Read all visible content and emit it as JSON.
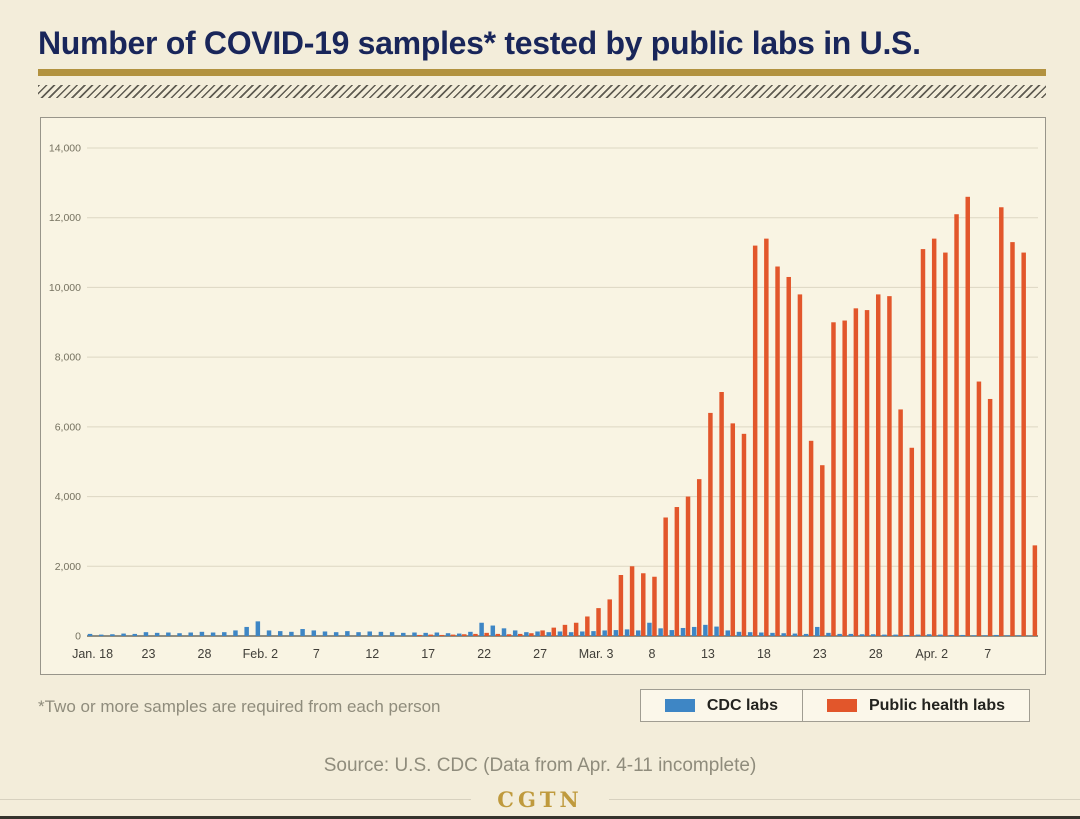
{
  "title": "Number of COVID-19 samples* tested by public labs in U.S.",
  "footnote": "*Two or more samples are required from each person",
  "source": "Source: U.S. CDC (Data from Apr. 4-11 incomplete)",
  "logo": "CGTN",
  "colors": {
    "background": "#f3edda",
    "title_navy": "#19265a",
    "gold_rule": "#b2923f",
    "cdc_blue": "#3e86c5",
    "public_health_orange": "#e2562b",
    "logo_gold": "#bf9a3d"
  },
  "legend": [
    {
      "label": "CDC labs",
      "color": "#3e86c5"
    },
    {
      "label": "Public health labs",
      "color": "#e2562b"
    }
  ],
  "chart_data": {
    "type": "bar",
    "title": "Number of COVID-19 samples* tested by public labs in U.S.",
    "xlabel": "",
    "ylabel": "",
    "ylim": [
      0,
      14000
    ],
    "ytick_interval": 2000,
    "ytick_labels": [
      "0",
      "2,000",
      "4,000",
      "6,000",
      "8,000",
      "10,000",
      "12,000",
      "14,000"
    ],
    "grid": true,
    "legend_position": "bottom-right",
    "x_tick_positions": [
      0,
      5,
      10,
      15,
      20,
      25,
      30,
      35,
      40,
      45,
      50,
      55,
      60,
      65,
      70,
      75,
      80
    ],
    "x_tick_labels": [
      "Jan. 18",
      "23",
      "28",
      "Feb. 2",
      "7",
      "12",
      "17",
      "22",
      "27",
      "Mar. 3",
      "8",
      "13",
      "18",
      "23",
      "28",
      "Apr. 2",
      "7"
    ],
    "categories": [
      "Jan 18",
      "Jan 19",
      "Jan 20",
      "Jan 21",
      "Jan 22",
      "Jan 23",
      "Jan 24",
      "Jan 25",
      "Jan 26",
      "Jan 27",
      "Jan 28",
      "Jan 29",
      "Jan 30",
      "Jan 31",
      "Feb 1",
      "Feb 2",
      "Feb 3",
      "Feb 4",
      "Feb 5",
      "Feb 6",
      "Feb 7",
      "Feb 8",
      "Feb 9",
      "Feb 10",
      "Feb 11",
      "Feb 12",
      "Feb 13",
      "Feb 14",
      "Feb 15",
      "Feb 16",
      "Feb 17",
      "Feb 18",
      "Feb 19",
      "Feb 20",
      "Feb 21",
      "Feb 22",
      "Feb 23",
      "Feb 24",
      "Feb 25",
      "Feb 26",
      "Feb 27",
      "Feb 28",
      "Feb 29",
      "Mar 1",
      "Mar 2",
      "Mar 3",
      "Mar 4",
      "Mar 5",
      "Mar 6",
      "Mar 7",
      "Mar 8",
      "Mar 9",
      "Mar 10",
      "Mar 11",
      "Mar 12",
      "Mar 13",
      "Mar 14",
      "Mar 15",
      "Mar 16",
      "Mar 17",
      "Mar 18",
      "Mar 19",
      "Mar 20",
      "Mar 21",
      "Mar 22",
      "Mar 23",
      "Mar 24",
      "Mar 25",
      "Mar 26",
      "Mar 27",
      "Mar 28",
      "Mar 29",
      "Mar 30",
      "Mar 31",
      "Apr 1",
      "Apr 2",
      "Apr 3",
      "Apr 4",
      "Apr 5",
      "Apr 6",
      "Apr 7",
      "Apr 8",
      "Apr 9",
      "Apr 10",
      "Apr 11"
    ],
    "series": [
      {
        "name": "CDC labs",
        "color": "#3e86c5",
        "values": [
          60,
          40,
          50,
          70,
          60,
          110,
          90,
          100,
          80,
          100,
          120,
          100,
          110,
          160,
          260,
          420,
          160,
          140,
          120,
          200,
          160,
          130,
          110,
          140,
          110,
          130,
          120,
          110,
          90,
          100,
          90,
          100,
          80,
          70,
          120,
          380,
          300,
          220,
          160,
          110,
          130,
          110,
          130,
          110,
          130,
          140,
          160,
          170,
          190,
          160,
          380,
          220,
          170,
          230,
          260,
          320,
          270,
          160,
          120,
          110,
          100,
          90,
          80,
          70,
          60,
          260,
          90,
          60,
          60,
          50,
          50,
          40,
          40,
          30,
          40,
          50,
          40,
          30,
          30,
          20,
          20,
          30,
          20,
          20,
          10
        ]
      },
      {
        "name": "Public health labs",
        "color": "#e2562b",
        "values": [
          0,
          0,
          0,
          0,
          0,
          0,
          0,
          0,
          0,
          0,
          0,
          0,
          0,
          0,
          0,
          0,
          0,
          0,
          0,
          0,
          0,
          0,
          0,
          0,
          0,
          0,
          0,
          0,
          0,
          30,
          40,
          30,
          40,
          50,
          60,
          90,
          60,
          50,
          60,
          80,
          160,
          240,
          320,
          380,
          560,
          800,
          1050,
          1750,
          2000,
          1800,
          1700,
          3400,
          3700,
          4000,
          4500,
          6400,
          7000,
          6100,
          5800,
          11200,
          11400,
          10600,
          10300,
          9800,
          5600,
          4900,
          9000,
          9050,
          9400,
          9350,
          9800,
          9750,
          6500,
          5400,
          11100,
          11400,
          11000,
          12100,
          12600,
          7300,
          6800,
          12300,
          11300,
          11000,
          2600
        ]
      }
    ]
  }
}
